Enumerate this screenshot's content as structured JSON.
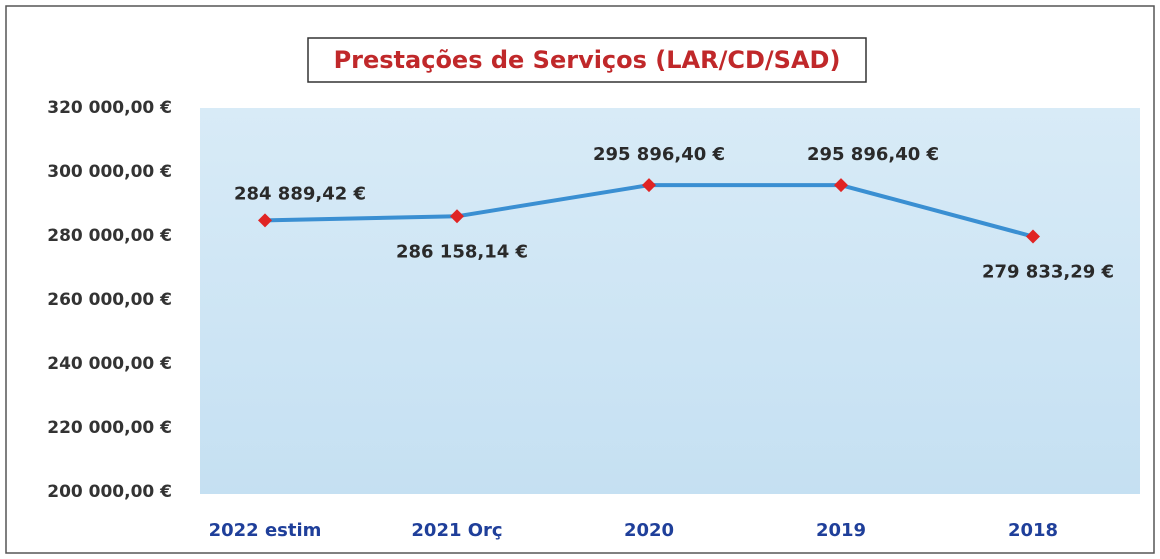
{
  "chart_data": {
    "type": "line",
    "title": "Prestações de Serviços (LAR/CD/SAD)",
    "categories": [
      "2022 estim",
      "2021 Orç",
      "2020",
      "2019",
      "2018"
    ],
    "values": [
      284889.42,
      286158.14,
      295896.4,
      295896.4,
      279833.29
    ],
    "value_labels": [
      "284 889,42 €",
      "286 158,14 €",
      "295 896,40 €",
      "295 896,40 €",
      "279 833,29 €"
    ],
    "color": "#3a8fd2",
    "marker_color": "#e02424",
    "ylim": [
      200000,
      320000
    ],
    "yticks": [
      {
        "value": 200000,
        "label": "200 000,00 €"
      },
      {
        "value": 220000,
        "label": "220 000,00 €"
      },
      {
        "value": 240000,
        "label": "240 000,00 €"
      },
      {
        "value": 260000,
        "label": "260 000,00 €"
      },
      {
        "value": 280000,
        "label": "280 000,00 €"
      },
      {
        "value": 300000,
        "label": "300 000,00 €"
      },
      {
        "value": 320000,
        "label": "320 000,00 €"
      }
    ],
    "grid": false
  }
}
